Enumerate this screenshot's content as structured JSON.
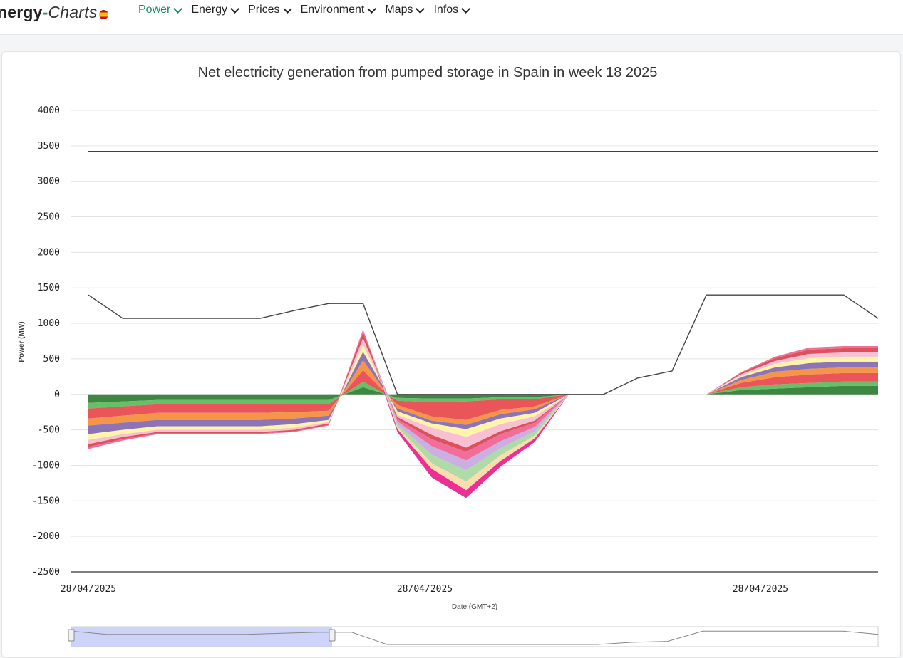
{
  "nav": {
    "brand_main": "nergy",
    "brand_dash": "-",
    "brand_charts": "Charts",
    "items": [
      {
        "label": "Power",
        "active": true
      },
      {
        "label": "Energy",
        "active": false
      },
      {
        "label": "Prices",
        "active": false
      },
      {
        "label": "Environment",
        "active": false
      },
      {
        "label": "Maps",
        "active": false
      },
      {
        "label": "Infos",
        "active": false
      }
    ]
  },
  "chart_data": {
    "type": "area",
    "title": "Net electricity generation from pumped storage in Spain in week 18 2025",
    "xlabel": "Date (GMT+2)",
    "ylabel": "Power (MW)",
    "ylim": [
      -2500,
      4000
    ],
    "yticks": [
      4000,
      3500,
      3000,
      2500,
      2000,
      1500,
      1000,
      500,
      0,
      -500,
      -1000,
      -1500,
      -2000,
      -2500
    ],
    "xtick_labels": [
      "28/04/2025",
      "28/04/2025",
      "28/04/2025"
    ],
    "x": [
      0,
      1,
      2,
      3,
      4,
      5,
      6,
      7,
      8,
      9,
      10,
      11,
      12,
      13,
      14,
      15,
      16,
      17,
      18,
      19,
      20,
      21,
      22,
      23
    ],
    "series": [
      {
        "color": "#2e7d32",
        "values": [
          -120,
          -100,
          -80,
          -80,
          -80,
          -80,
          -80,
          -80,
          100,
          -50,
          -60,
          -60,
          -40,
          -40,
          0,
          0,
          0,
          0,
          0,
          60,
          80,
          100,
          120,
          120
        ]
      },
      {
        "color": "#5cb85c",
        "values": [
          -80,
          -70,
          -60,
          -60,
          -60,
          -60,
          -60,
          -60,
          80,
          -40,
          -50,
          -40,
          -30,
          -30,
          0,
          0,
          0,
          0,
          0,
          40,
          60,
          60,
          60,
          60
        ]
      },
      {
        "color": "#e8474c",
        "values": [
          -140,
          -130,
          -120,
          -120,
          -120,
          -120,
          -110,
          -90,
          160,
          -60,
          -200,
          -260,
          -150,
          -100,
          0,
          0,
          0,
          0,
          0,
          60,
          100,
          120,
          120,
          120
        ]
      },
      {
        "color": "#f48c3a",
        "values": [
          -100,
          -100,
          -100,
          -100,
          -100,
          -100,
          -90,
          -70,
          140,
          -50,
          -60,
          -70,
          -60,
          -40,
          0,
          0,
          0,
          0,
          0,
          40,
          80,
          80,
          80,
          80
        ]
      },
      {
        "color": "#8268b0",
        "values": [
          -120,
          -100,
          -90,
          -90,
          -90,
          -90,
          -80,
          -60,
          120,
          -40,
          -40,
          -60,
          -60,
          -50,
          0,
          0,
          0,
          0,
          0,
          40,
          60,
          80,
          80,
          80
        ]
      },
      {
        "color": "#fff4a3",
        "values": [
          -80,
          -60,
          -50,
          -50,
          -50,
          -50,
          -50,
          -30,
          100,
          -50,
          -60,
          -110,
          -80,
          -50,
          0,
          0,
          0,
          0,
          0,
          20,
          50,
          70,
          70,
          70
        ]
      },
      {
        "color": "#f8bbd0",
        "values": [
          -60,
          -40,
          -30,
          -30,
          -30,
          -30,
          -30,
          -20,
          90,
          -30,
          -100,
          -150,
          -100,
          -60,
          0,
          0,
          0,
          0,
          0,
          20,
          40,
          60,
          60,
          60
        ]
      },
      {
        "color": "#d9434e",
        "values": [
          -40,
          -30,
          -20,
          -20,
          -20,
          -20,
          -20,
          -20,
          80,
          -30,
          -60,
          -60,
          -40,
          -30,
          0,
          0,
          0,
          0,
          0,
          20,
          40,
          60,
          60,
          60
        ]
      },
      {
        "color": "#f06292",
        "values": [
          -30,
          -20,
          -10,
          -10,
          -10,
          -10,
          -10,
          -10,
          40,
          -30,
          -100,
          -120,
          -100,
          -60,
          0,
          0,
          0,
          0,
          0,
          10,
          20,
          30,
          30,
          30
        ]
      },
      {
        "color": "#c7a8e0",
        "values": [
          0,
          0,
          0,
          0,
          0,
          0,
          0,
          0,
          0,
          -40,
          -120,
          -140,
          -100,
          -60,
          0,
          0,
          0,
          0,
          0,
          0,
          0,
          0,
          0,
          0
        ]
      },
      {
        "color": "#a8d8a0",
        "values": [
          0,
          0,
          0,
          0,
          0,
          0,
          0,
          0,
          0,
          -40,
          -120,
          -160,
          -100,
          -60,
          0,
          0,
          0,
          0,
          0,
          0,
          0,
          0,
          0,
          0
        ]
      },
      {
        "color": "#fdd9a8",
        "values": [
          0,
          0,
          0,
          0,
          0,
          0,
          0,
          0,
          0,
          -30,
          -80,
          -120,
          -80,
          -40,
          0,
          0,
          0,
          0,
          0,
          0,
          0,
          0,
          0,
          0
        ]
      },
      {
        "color": "#e91e8c",
        "values": [
          0,
          0,
          0,
          0,
          0,
          0,
          0,
          0,
          0,
          -40,
          -120,
          -110,
          -80,
          -50,
          0,
          0,
          0,
          0,
          0,
          0,
          0,
          0,
          0,
          0
        ]
      }
    ],
    "lines": [
      {
        "color": "#222222",
        "values": [
          3420,
          3420,
          3420,
          3420,
          3420,
          3420,
          3420,
          3420,
          3420,
          3420,
          3420,
          3420,
          3420,
          3420,
          3420,
          3420,
          3420,
          3420,
          3420,
          3420,
          3420,
          3420,
          3420,
          3420
        ]
      },
      {
        "color": "#444444",
        "values": [
          1400,
          1070,
          1070,
          1070,
          1070,
          1070,
          1180,
          1280,
          1280,
          0,
          0,
          0,
          0,
          0,
          0,
          0,
          230,
          330,
          1400,
          1400,
          1400,
          1400,
          1400,
          1070
        ]
      }
    ],
    "legend": "none",
    "grid": true
  }
}
